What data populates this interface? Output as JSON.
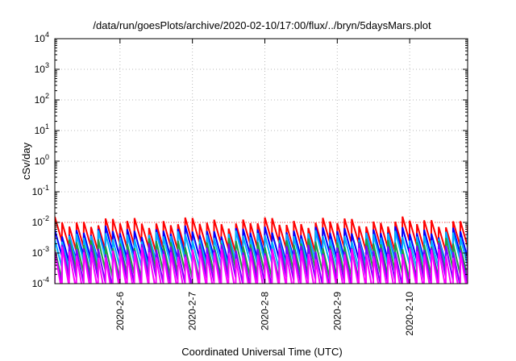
{
  "chart_data": {
    "type": "line",
    "title": "/data/run/goesPlots/archive/2020-02-10/17:00/flux/../bryn/5daysMars.plot",
    "xlabel": "Coordinated Universal Time (UTC)",
    "ylabel": "cSv/day",
    "y_scale": "log",
    "ylim_exponent": [
      -4,
      4
    ],
    "ytick_exponents": [
      -4,
      -3,
      -2,
      -1,
      0,
      1,
      2,
      3,
      4
    ],
    "xlim_days": [
      5.1,
      10.8
    ],
    "xticks": [
      {
        "day": 6,
        "label": "2020-2-6"
      },
      {
        "day": 7,
        "label": "2020-2-7"
      },
      {
        "day": 8,
        "label": "2020-2-8"
      },
      {
        "day": 9,
        "label": "2020-2-9"
      },
      {
        "day": 10,
        "label": "2020-2-10"
      }
    ],
    "grid": true,
    "reference_level": 0.01,
    "sawtooth_period_days": 0.1,
    "series": [
      {
        "color": "#ff0000",
        "base_exponent": -2.0,
        "amplitude": 0.8
      },
      {
        "color": "#0000ff",
        "base_exponent": -2.3,
        "amplitude": 0.85
      },
      {
        "color": "#00b0ff",
        "base_exponent": -2.45,
        "amplitude": 0.9
      },
      {
        "color": "#20a040",
        "base_exponent": -2.7,
        "amplitude": 1.0
      },
      {
        "color": "#8000ff",
        "base_exponent": -2.85,
        "amplitude": 1.1
      },
      {
        "color": "#ff00ff",
        "base_exponent": -3.0,
        "amplitude": 1.3
      }
    ]
  }
}
